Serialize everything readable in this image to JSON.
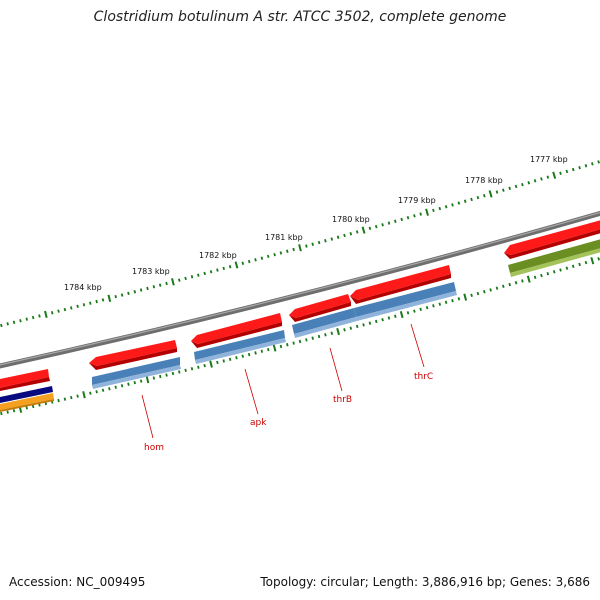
{
  "title": "Clostridium botulinum A str. ATCC 3502, complete genome",
  "footer": {
    "accession": "Accession: NC_009495",
    "summary": "Topology: circular; Length: 3,886,916 bp; Genes: 3,686"
  },
  "scale_labels": [
    "1784 kbp",
    "1783 kbp",
    "1782 kbp",
    "1781 kbp",
    "1780 kbp",
    "1779 kbp",
    "1778 kbp",
    "1777 kbp"
  ],
  "gene_labels": [
    "hom",
    "apk",
    "thrB",
    "thrC"
  ],
  "colors": {
    "backbone": "#808080",
    "cds": "#ff1a1a",
    "gene": "#4a80b8",
    "rrna": "#6b8e23",
    "navy": "#0a0a80",
    "orange": "#f5a020",
    "tick": "#1a7a1a",
    "label": "#cc0000"
  }
}
